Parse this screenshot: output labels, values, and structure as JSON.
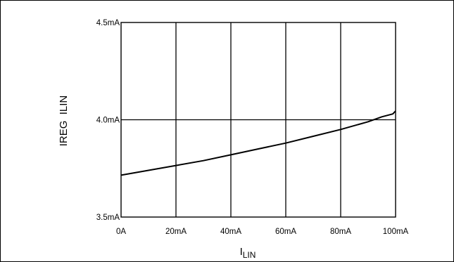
{
  "chart_data": {
    "type": "line",
    "title": "",
    "xlabel": "I",
    "xlabel_sub": "LIN",
    "ylabel": "IREG  ILIN",
    "x_unit": "mA",
    "xlim": [
      0,
      100
    ],
    "ylim": [
      3.5,
      4.5
    ],
    "x_ticks": [
      0,
      20,
      40,
      60,
      80,
      100
    ],
    "x_tick_labels": [
      "0A",
      "20mA",
      "40mA",
      "60mA",
      "80mA",
      "100mA"
    ],
    "y_ticks": [
      3.5,
      4.0,
      4.5
    ],
    "y_tick_labels": [
      "3.5mA",
      "4.0mA",
      "4.5mA"
    ],
    "grid": true,
    "legend": "none",
    "series": [
      {
        "color": "#000000",
        "x": [
          0,
          10,
          20,
          30,
          40,
          50,
          60,
          70,
          80,
          90,
          95,
          99,
          100
        ],
        "y": [
          3.715,
          3.74,
          3.765,
          3.79,
          3.82,
          3.85,
          3.88,
          3.915,
          3.95,
          3.99,
          4.015,
          4.03,
          4.045
        ]
      }
    ]
  }
}
